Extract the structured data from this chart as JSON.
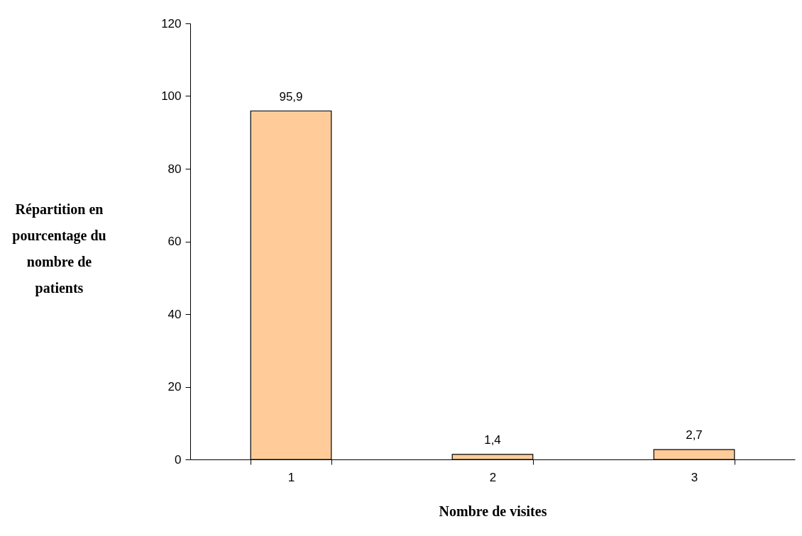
{
  "chart_data": {
    "type": "bar",
    "xlabel": "Nombre de visites",
    "ylabel": "Répartition en pourcentage du nombre de patients",
    "categories": [
      "1",
      "2",
      "3"
    ],
    "values": [
      95.9,
      1.4,
      2.7
    ],
    "value_labels": [
      "95,9",
      "1,4",
      "2,7"
    ],
    "color": "#ffcc99",
    "ylim": [
      0,
      120
    ],
    "yticks": [
      0,
      20,
      40,
      60,
      80,
      100,
      120
    ],
    "grid": false
  }
}
